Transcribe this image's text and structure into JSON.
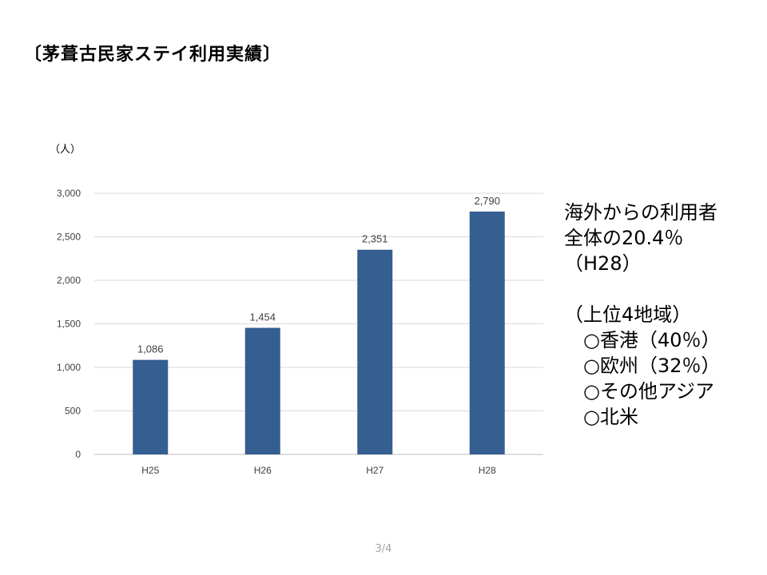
{
  "slide": {
    "title": "〔茅葺古民家ステイ利用実績〕",
    "page_number": "3/4"
  },
  "chart_data": {
    "type": "bar",
    "unit_label": "（人）",
    "categories": [
      "H25",
      "H26",
      "H27",
      "H28"
    ],
    "values": [
      1086,
      1454,
      2351,
      2790
    ],
    "value_labels": [
      "1,086",
      "1,454",
      "2,351",
      "2,790"
    ],
    "yticks": [
      0,
      500,
      1000,
      1500,
      2000,
      2500,
      3000
    ],
    "ytick_labels": [
      "0",
      "500",
      "1,000",
      "1,500",
      "2,000",
      "2,500",
      "3,000"
    ],
    "ylim": [
      0,
      3000
    ],
    "grid": true,
    "bar_color": "#355e91",
    "grid_color": "#d9d9d9"
  },
  "side_note": {
    "lines": [
      "海外からの利用者",
      "全体の20.4％",
      "（H28）",
      "",
      "（上位4地域）",
      "　○香港（40％）",
      "　○欧州（32％）",
      "　○その他アジア",
      "　○北米"
    ]
  }
}
